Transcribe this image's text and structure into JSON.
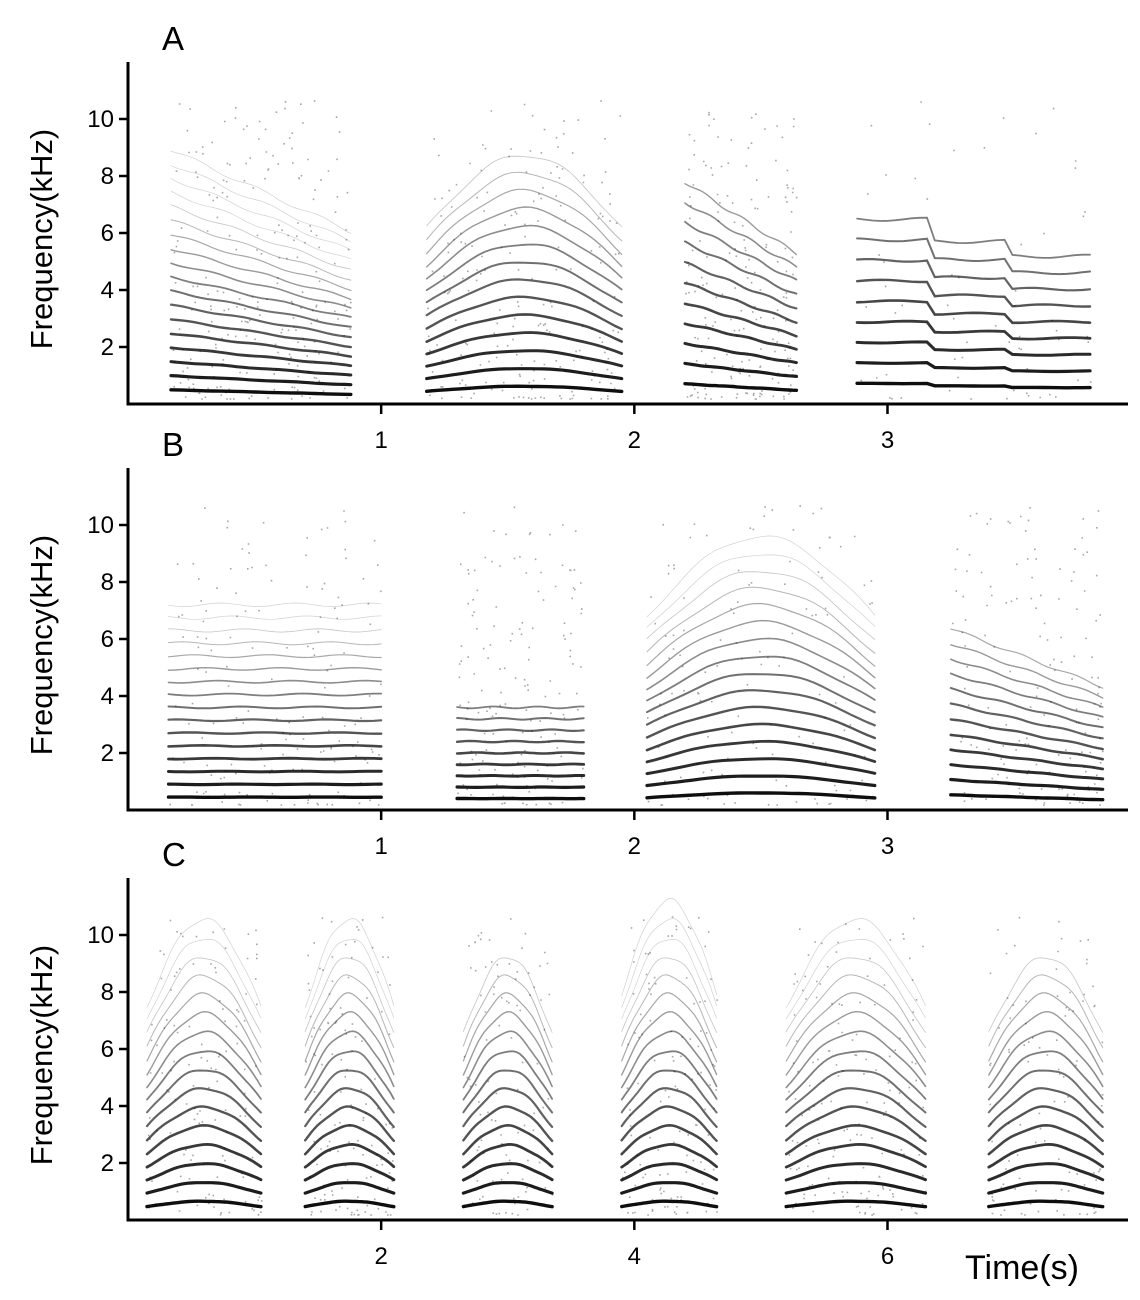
{
  "figure": {
    "x_axis_title": "Time(s)",
    "ink_color": "#000000",
    "background": "#ffffff"
  },
  "chart_data": [
    {
      "type": "spectrogram",
      "panel_label": "A",
      "ylabel": "Frequency(kHz)",
      "xlabel": "",
      "ylim": [
        0,
        12
      ],
      "xlim": [
        0,
        3.95
      ],
      "yticks": [
        2,
        4,
        6,
        8,
        10
      ],
      "ytick_labels": [
        "2",
        "4",
        "6",
        "8",
        "10"
      ],
      "xticks": [
        1,
        2,
        3
      ],
      "xtick_labels": [
        "1",
        "2",
        "3"
      ],
      "grid": false,
      "calls": [
        {
          "start": 0.17,
          "end": 0.88,
          "f0": 0.42,
          "harmonics": 18,
          "shape": "fall",
          "noise": 0.9
        },
        {
          "start": 1.18,
          "end": 1.95,
          "f0": 0.52,
          "harmonics": 14,
          "shape": "arch",
          "noise": 0.8
        },
        {
          "start": 2.2,
          "end": 2.64,
          "f0": 0.6,
          "harmonics": 11,
          "shape": "fall",
          "noise": 0.7
        },
        {
          "start": 2.88,
          "end": 3.8,
          "f0": 0.72,
          "harmonics": 9,
          "shape": "steps",
          "noise": 0.25
        }
      ]
    },
    {
      "type": "spectrogram",
      "panel_label": "B",
      "ylabel": "Frequency(kHz)",
      "xlabel": "",
      "ylim": [
        0,
        12
      ],
      "xlim": [
        0,
        3.95
      ],
      "yticks": [
        2,
        4,
        6,
        8,
        10
      ],
      "ytick_labels": [
        "2",
        "4",
        "6",
        "8",
        "10"
      ],
      "xticks": [
        1,
        2,
        3
      ],
      "xtick_labels": [
        "1",
        "2",
        "3"
      ],
      "grid": false,
      "calls": [
        {
          "start": 0.16,
          "end": 1.0,
          "f0": 0.45,
          "harmonics": 16,
          "shape": "flat",
          "noise": 0.6
        },
        {
          "start": 1.3,
          "end": 1.8,
          "f0": 0.4,
          "harmonics": 9,
          "shape": "flat",
          "noise": 0.6
        },
        {
          "start": 2.05,
          "end": 2.95,
          "f0": 0.5,
          "harmonics": 16,
          "shape": "arch",
          "noise": 0.5
        },
        {
          "start": 3.25,
          "end": 3.85,
          "f0": 0.45,
          "harmonics": 12,
          "shape": "fall",
          "noise": 0.6
        }
      ]
    },
    {
      "type": "spectrogram",
      "panel_label": "C",
      "ylabel": "Frequency(kHz)",
      "xlabel": "Time(s)",
      "ylim": [
        0,
        12
      ],
      "xlim": [
        0,
        7.9
      ],
      "yticks": [
        2,
        4,
        6,
        8,
        10
      ],
      "ytick_labels": [
        "2",
        "4",
        "6",
        "8",
        "10"
      ],
      "xticks": [
        2,
        4,
        6
      ],
      "xtick_labels": [
        "2",
        "4",
        "6"
      ],
      "grid": false,
      "calls": [
        {
          "start": 0.15,
          "end": 1.05,
          "f0": 0.55,
          "harmonics": 16,
          "shape": "arch",
          "noise": 0.5
        },
        {
          "start": 1.4,
          "end": 2.1,
          "f0": 0.55,
          "harmonics": 16,
          "shape": "arch",
          "noise": 0.5
        },
        {
          "start": 2.65,
          "end": 3.35,
          "f0": 0.55,
          "harmonics": 14,
          "shape": "arch",
          "noise": 0.4
        },
        {
          "start": 3.9,
          "end": 4.65,
          "f0": 0.55,
          "harmonics": 17,
          "shape": "arch",
          "noise": 0.5
        },
        {
          "start": 5.2,
          "end": 6.3,
          "f0": 0.55,
          "harmonics": 16,
          "shape": "arch",
          "noise": 0.6
        },
        {
          "start": 6.8,
          "end": 7.7,
          "f0": 0.55,
          "harmonics": 14,
          "shape": "arch",
          "noise": 0.4
        }
      ]
    }
  ]
}
